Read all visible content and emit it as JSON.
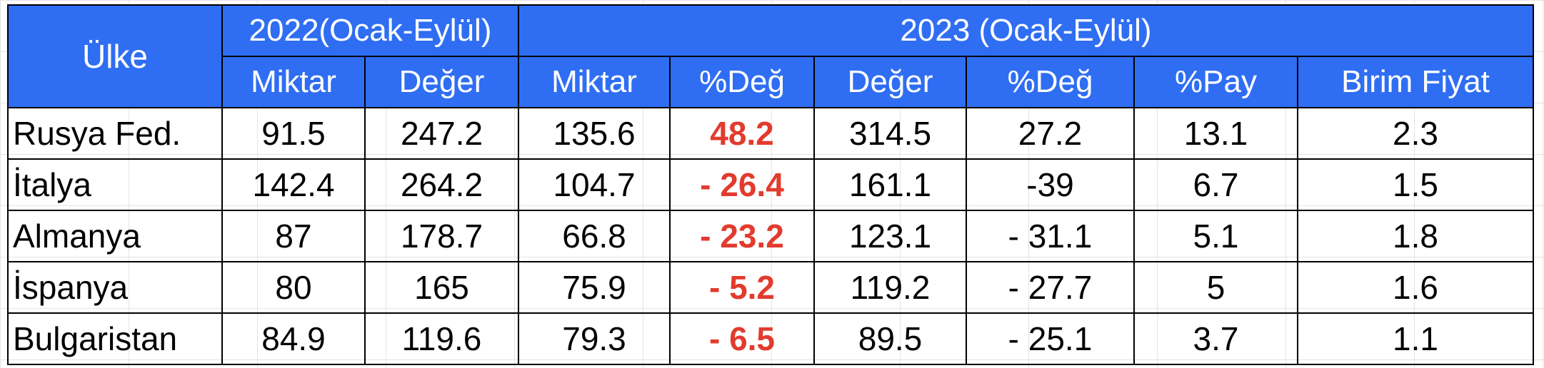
{
  "table": {
    "header": {
      "country": "Ülke",
      "group_2022": "2022(Ocak-Eylül)",
      "group_2023": "2023 (Ocak-Eylül)",
      "columns_2022": [
        "Miktar",
        "Değer"
      ],
      "columns_2023": [
        "Miktar",
        "%Değ",
        "Değer",
        "%Değ",
        "%Pay",
        "Birim Fiyat"
      ]
    },
    "rows": [
      {
        "country": "Rusya Fed.",
        "miktar_2022": "91.5",
        "deger_2022": "247.2",
        "miktar_2023": "135.6",
        "miktar_change": "48.2",
        "deger_2023": "314.5",
        "deger_change": "27.2",
        "pay": "13.1",
        "birim_fiyat": "2.3"
      },
      {
        "country": "İtalya",
        "miktar_2022": "142.4",
        "deger_2022": "264.2",
        "miktar_2023": "104.7",
        "miktar_change": "- 26.4",
        "deger_2023": "161.1",
        "deger_change": "-39",
        "pay": "6.7",
        "birim_fiyat": "1.5"
      },
      {
        "country": "Almanya",
        "miktar_2022": "87",
        "deger_2022": "178.7",
        "miktar_2023": "66.8",
        "miktar_change": "- 23.2",
        "deger_2023": "123.1",
        "deger_change": "- 31.1",
        "pay": "5.1",
        "birim_fiyat": "1.8"
      },
      {
        "country": "İspanya",
        "miktar_2022": "80",
        "deger_2022": "165",
        "miktar_2023": "75.9",
        "miktar_change": "- 5.2",
        "deger_2023": "119.2",
        "deger_change": "- 27.7",
        "pay": "5",
        "birim_fiyat": "1.6"
      },
      {
        "country": "Bulgaristan",
        "miktar_2022": "84.9",
        "deger_2022": "119.6",
        "miktar_2023": "79.3",
        "miktar_change": "- 6.5",
        "deger_2023": "89.5",
        "deger_change": "- 25.1",
        "pay": "3.7",
        "birim_fiyat": "1.1"
      }
    ]
  },
  "colors": {
    "header_bg": "#2f6ef3",
    "header_text": "#ffffff",
    "highlight_text": "#e23b2e"
  }
}
